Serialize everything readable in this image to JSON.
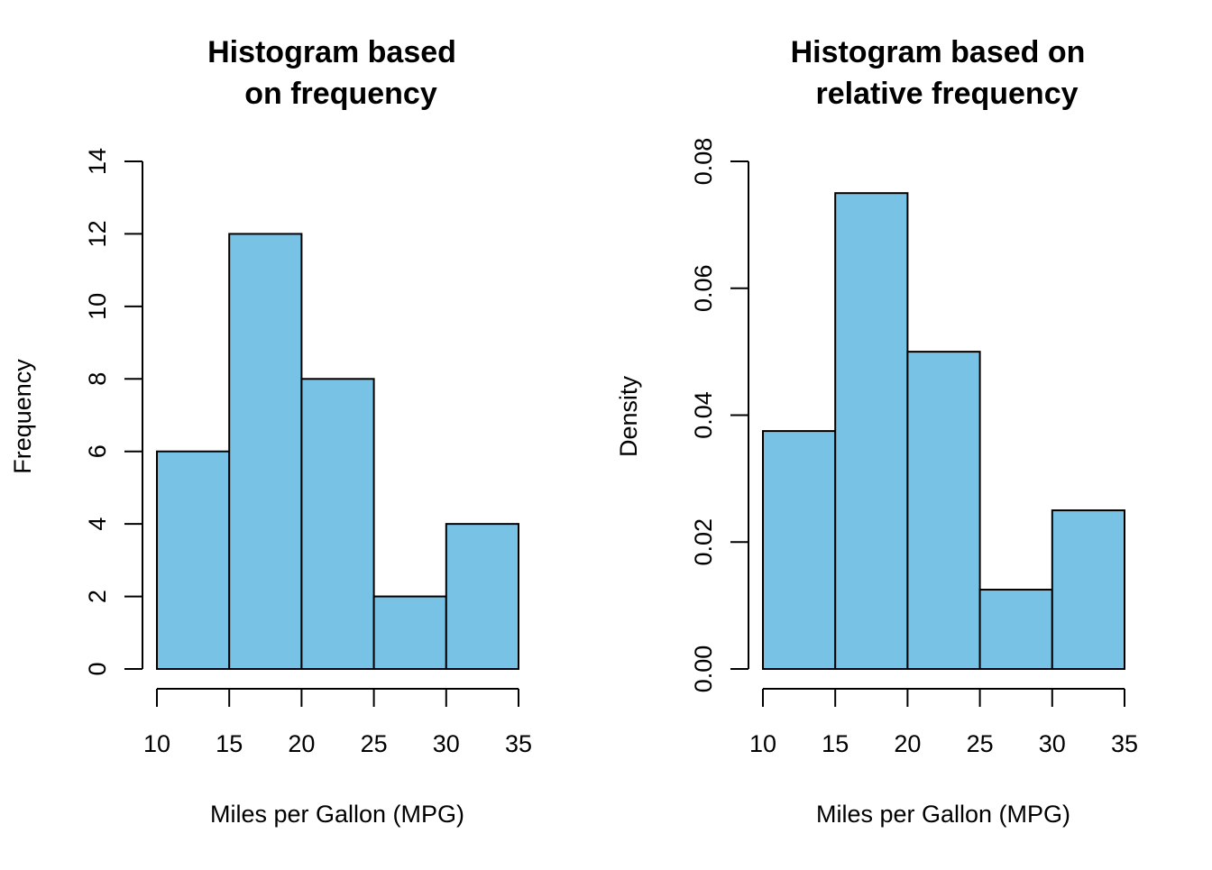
{
  "colors": {
    "bar_fill": "#77C2E5",
    "bar_stroke": "#000000",
    "background": "#FFFFFF"
  },
  "chart_data": [
    {
      "type": "bar",
      "title": [
        "Histogram based",
        "on frequency"
      ],
      "xlabel": "Miles per Gallon (MPG)",
      "ylabel": "Frequency",
      "bin_edges": [
        10,
        15,
        20,
        25,
        30,
        35
      ],
      "values": [
        6,
        12,
        8,
        2,
        4
      ],
      "xlim": [
        10,
        35
      ],
      "ylim": [
        0,
        14
      ],
      "xticks": [
        10,
        15,
        20,
        25,
        30,
        35
      ],
      "yticks": [
        0,
        2,
        4,
        6,
        8,
        10,
        12,
        14
      ],
      "xtick_labels": [
        "10",
        "15",
        "20",
        "25",
        "30",
        "35"
      ],
      "ytick_labels": [
        "0",
        "2",
        "4",
        "6",
        "8",
        "10",
        "12",
        "14"
      ],
      "grid": false,
      "legend": "none"
    },
    {
      "type": "bar",
      "title": [
        "Histogram based on",
        "relative frequency"
      ],
      "xlabel": "Miles per Gallon (MPG)",
      "ylabel": "Density",
      "bin_edges": [
        10,
        15,
        20,
        25,
        30,
        35
      ],
      "values": [
        0.0375,
        0.075,
        0.05,
        0.0125,
        0.025
      ],
      "xlim": [
        10,
        35
      ],
      "ylim": [
        0,
        0.08
      ],
      "xticks": [
        10,
        15,
        20,
        25,
        30,
        35
      ],
      "yticks": [
        0,
        0.02,
        0.04,
        0.06,
        0.08
      ],
      "xtick_labels": [
        "10",
        "15",
        "20",
        "25",
        "30",
        "35"
      ],
      "ytick_labels": [
        "0.00",
        "0.02",
        "0.04",
        "0.06",
        "0.08"
      ],
      "grid": false,
      "legend": "none"
    }
  ]
}
